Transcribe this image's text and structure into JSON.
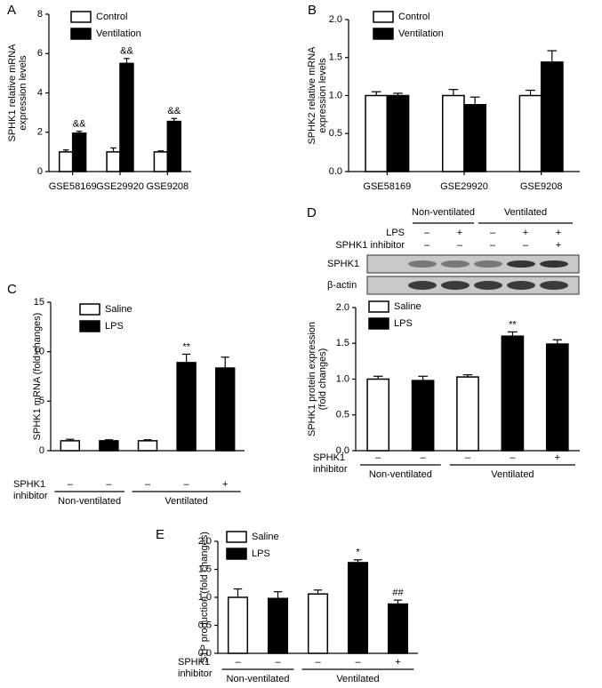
{
  "chart_data": [
    {
      "type": "bar",
      "panel": "A",
      "ylabel": [
        "SPHK1 relative mRNA",
        "expression levels"
      ],
      "categories": [
        "GSE58169",
        "GSE29920",
        "GSE9208"
      ],
      "series": [
        {
          "name": "Control",
          "color": "#ffffff",
          "values": [
            1.0,
            1.0,
            1.0
          ],
          "errors": [
            0.1,
            0.2,
            0.05
          ]
        },
        {
          "name": "Ventilation",
          "color": "#000000",
          "values": [
            1.95,
            5.5,
            2.55
          ],
          "errors": [
            0.1,
            0.25,
            0.15
          ],
          "annotations": [
            "&&",
            "&&",
            "&&"
          ]
        }
      ],
      "ylim": [
        0,
        8
      ],
      "yticks": [
        0,
        2,
        4,
        6,
        8
      ]
    },
    {
      "type": "bar",
      "panel": "B",
      "ylabel": [
        "SPHK2 relative mRNA",
        "expression levels"
      ],
      "categories": [
        "GSE58169",
        "GSE29920",
        "GSE9208"
      ],
      "series": [
        {
          "name": "Control",
          "color": "#ffffff",
          "values": [
            1.0,
            1.0,
            1.0
          ],
          "errors": [
            0.05,
            0.08,
            0.07
          ]
        },
        {
          "name": "Ventilation",
          "color": "#000000",
          "values": [
            1.0,
            0.88,
            1.44
          ],
          "errors": [
            0.03,
            0.1,
            0.15
          ]
        }
      ],
      "ylim": [
        0,
        2
      ],
      "yticks": [
        {
          "value": 0,
          "label": "0.0"
        },
        0.5,
        {
          "value": 1,
          "label": "1.0"
        },
        1.5,
        {
          "value": 2,
          "label": "2.0"
        }
      ]
    },
    {
      "type": "bar",
      "panel": "C",
      "ylabel": [
        "SPHK1 mRNA (fold changes)"
      ],
      "categories": [
        null,
        null,
        null,
        null,
        null
      ],
      "series": [
        {
          "name": "Saline",
          "color": "#ffffff",
          "values": [
            1.0,
            null,
            1.0,
            null,
            null
          ],
          "errors": [
            0.15,
            null,
            0.1,
            null,
            null
          ]
        },
        {
          "name": "LPS",
          "color": "#000000",
          "values": [
            null,
            1.0,
            null,
            8.9,
            8.35
          ],
          "errors": [
            null,
            0.1,
            null,
            0.85,
            1.1
          ],
          "annotations": [
            null,
            null,
            null,
            "**",
            null
          ]
        }
      ],
      "ylim": [
        0,
        15
      ],
      "yticks": [
        0,
        5,
        10,
        15
      ],
      "rows": [
        {
          "label": [
            "SPHK1",
            "inhibitor"
          ],
          "signs": [
            "–",
            "–",
            "–",
            "–",
            "+"
          ]
        }
      ],
      "groups": [
        {
          "label": "Non-ventilated",
          "count": 2
        },
        {
          "label": "Ventilated",
          "count": 3
        }
      ]
    },
    {
      "type": "bar",
      "panel": "D",
      "ylabel": [
        "SPHK1 protein expression",
        "(fold changes)"
      ],
      "categories": [
        null,
        null,
        null,
        null,
        null
      ],
      "series": [
        {
          "name": "Saline",
          "color": "#ffffff",
          "values": [
            1.0,
            null,
            1.03,
            null,
            null
          ],
          "errors": [
            0.04,
            null,
            0.03,
            null,
            null
          ]
        },
        {
          "name": "LPS",
          "color": "#000000",
          "values": [
            null,
            0.98,
            null,
            1.6,
            1.49
          ],
          "errors": [
            null,
            0.06,
            null,
            0.06,
            0.06
          ],
          "annotations": [
            null,
            null,
            null,
            "**",
            null
          ]
        }
      ],
      "ylim": [
        0,
        2
      ],
      "yticks": [
        {
          "value": 0,
          "label": "0.0"
        },
        0.5,
        {
          "value": 1,
          "label": "1.0"
        },
        1.5,
        {
          "value": 2,
          "label": "2.0"
        }
      ],
      "rows": [
        {
          "label": [
            "SPHK1",
            "inhibitor"
          ],
          "signs": [
            "–",
            "–",
            "–",
            "–",
            "+"
          ]
        }
      ],
      "groups": [
        {
          "label": "Non-ventilated",
          "count": 2
        },
        {
          "label": "Ventilated",
          "count": 3
        }
      ],
      "blot": {
        "groups": [
          {
            "label": "Non-ventilated",
            "count": 2
          },
          {
            "label": "Ventilated",
            "count": 3
          }
        ],
        "rows": [
          {
            "label": "LPS",
            "signs": [
              "–",
              "+",
              "–",
              "+",
              "+"
            ]
          },
          {
            "label": "SPHK1 inhibitor",
            "signs": [
              "–",
              "–",
              "–",
              "–",
              "+"
            ]
          }
        ],
        "bands": [
          "SPHK1",
          "β-actin"
        ]
      }
    },
    {
      "type": "bar",
      "panel": "E",
      "ylabel": [
        "S1P production (fold changes)"
      ],
      "categories": [
        null,
        null,
        null,
        null,
        null
      ],
      "series": [
        {
          "name": "Saline",
          "color": "#ffffff",
          "values": [
            1.0,
            null,
            1.06,
            null,
            null
          ],
          "errors": [
            0.15,
            null,
            0.07,
            null,
            null
          ]
        },
        {
          "name": "LPS",
          "color": "#000000",
          "values": [
            null,
            0.98,
            null,
            1.62,
            0.88
          ],
          "errors": [
            null,
            0.12,
            null,
            0.05,
            0.07
          ],
          "annotations": [
            null,
            null,
            null,
            "*",
            "##"
          ]
        }
      ],
      "ylim": [
        0,
        2
      ],
      "yticks": [
        {
          "value": 0,
          "label": "0.0"
        },
        0.5,
        {
          "value": 1,
          "label": "1.0"
        },
        1.5,
        {
          "value": 2,
          "label": "2.0"
        }
      ],
      "rows": [
        {
          "label": [
            "SPHK1",
            "inhibitor"
          ],
          "signs": [
            "–",
            "–",
            "–",
            "–",
            "+"
          ]
        }
      ],
      "groups": [
        {
          "label": "Non-ventilated",
          "count": 2
        },
        {
          "label": "Ventilated",
          "count": 3
        }
      ]
    }
  ]
}
